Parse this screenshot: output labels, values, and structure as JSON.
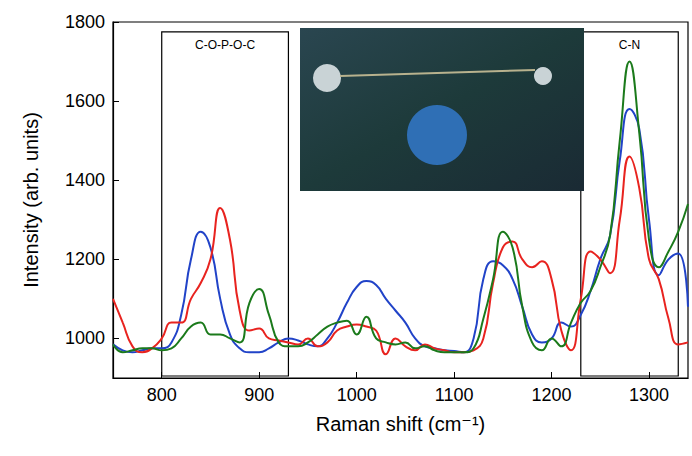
{
  "chart_data": {
    "type": "line",
    "x_label": "Raman shift (cm⁻¹)",
    "y_label": "Intensity (arb. units)",
    "x": [
      750,
      760,
      770,
      780,
      790,
      800,
      810,
      820,
      830,
      840,
      850,
      860,
      870,
      880,
      890,
      900,
      910,
      920,
      930,
      940,
      950,
      960,
      970,
      980,
      990,
      1000,
      1010,
      1020,
      1030,
      1040,
      1050,
      1060,
      1070,
      1080,
      1090,
      1100,
      1110,
      1120,
      1130,
      1140,
      1150,
      1160,
      1170,
      1180,
      1190,
      1200,
      1210,
      1220,
      1230,
      1240,
      1250,
      1260,
      1270,
      1280,
      1290,
      1300,
      1310,
      1320,
      1330,
      1340
    ],
    "series": [
      {
        "color": "#2143c8",
        "values": [
          985,
          970,
          965,
          970,
          975,
          975,
          990,
          1060,
          1200,
          1270,
          1230,
          1100,
          1010,
          975,
          965,
          965,
          975,
          990,
          1000,
          995,
          985,
          980,
          1000,
          1040,
          1090,
          1130,
          1145,
          1135,
          1100,
          1070,
          1040,
          1000,
          980,
          975,
          970,
          968,
          965,
          1000,
          1150,
          1195,
          1185,
          1150,
          1080,
          1010,
          990,
          1000,
          1040,
          1030,
          1060,
          1120,
          1200,
          1260,
          1450,
          1580,
          1530,
          1300,
          1160,
          1200,
          1215,
          1080
        ]
      },
      {
        "color": "#e8231f",
        "values": [
          1100,
          1040,
          980,
          965,
          975,
          1000,
          1040,
          1040,
          1100,
          1140,
          1200,
          1330,
          1250,
          1070,
          1020,
          1025,
          1000,
          995,
          990,
          985,
          1000,
          980,
          990,
          1020,
          1030,
          1035,
          1030,
          1020,
          960,
          1000,
          980,
          970,
          985,
          975,
          970,
          965,
          965,
          970,
          1000,
          1140,
          1230,
          1245,
          1200,
          1180,
          1195,
          1150,
          1020,
          970,
          1100,
          1220,
          1200,
          1165,
          1300,
          1460,
          1380,
          1200,
          1150,
          1050,
          985,
          990
        ]
      },
      {
        "color": "#1b7a1b",
        "values": [
          985,
          965,
          970,
          975,
          975,
          970,
          975,
          1000,
          1030,
          1040,
          1010,
          1010,
          1000,
          990,
          1090,
          1125,
          1060,
          990,
          980,
          980,
          990,
          1010,
          1030,
          1040,
          1045,
          1010,
          1055,
          1000,
          990,
          985,
          990,
          975,
          980,
          970,
          965,
          965,
          965,
          975,
          1050,
          1150,
          1270,
          1230,
          1080,
          990,
          970,
          1000,
          980,
          1040,
          1090,
          1120,
          1180,
          1260,
          1500,
          1700,
          1520,
          1250,
          1180,
          1220,
          1270,
          1340
        ]
      }
    ],
    "xlim": [
      750,
      1340
    ],
    "ylim": [
      900,
      1800
    ],
    "xticks": [
      800,
      900,
      1000,
      1100,
      1200,
      1300
    ],
    "yticks": [
      1000,
      1200,
      1400,
      1600,
      1800
    ],
    "grid": false,
    "annotations": [
      {
        "text": "C-O-P-O-C",
        "x": [
          800,
          930
        ],
        "y": [
          905,
          1775
        ]
      },
      {
        "text": "C-N",
        "x": [
          1230,
          1330
        ],
        "y": [
          905,
          1775
        ]
      }
    ]
  }
}
